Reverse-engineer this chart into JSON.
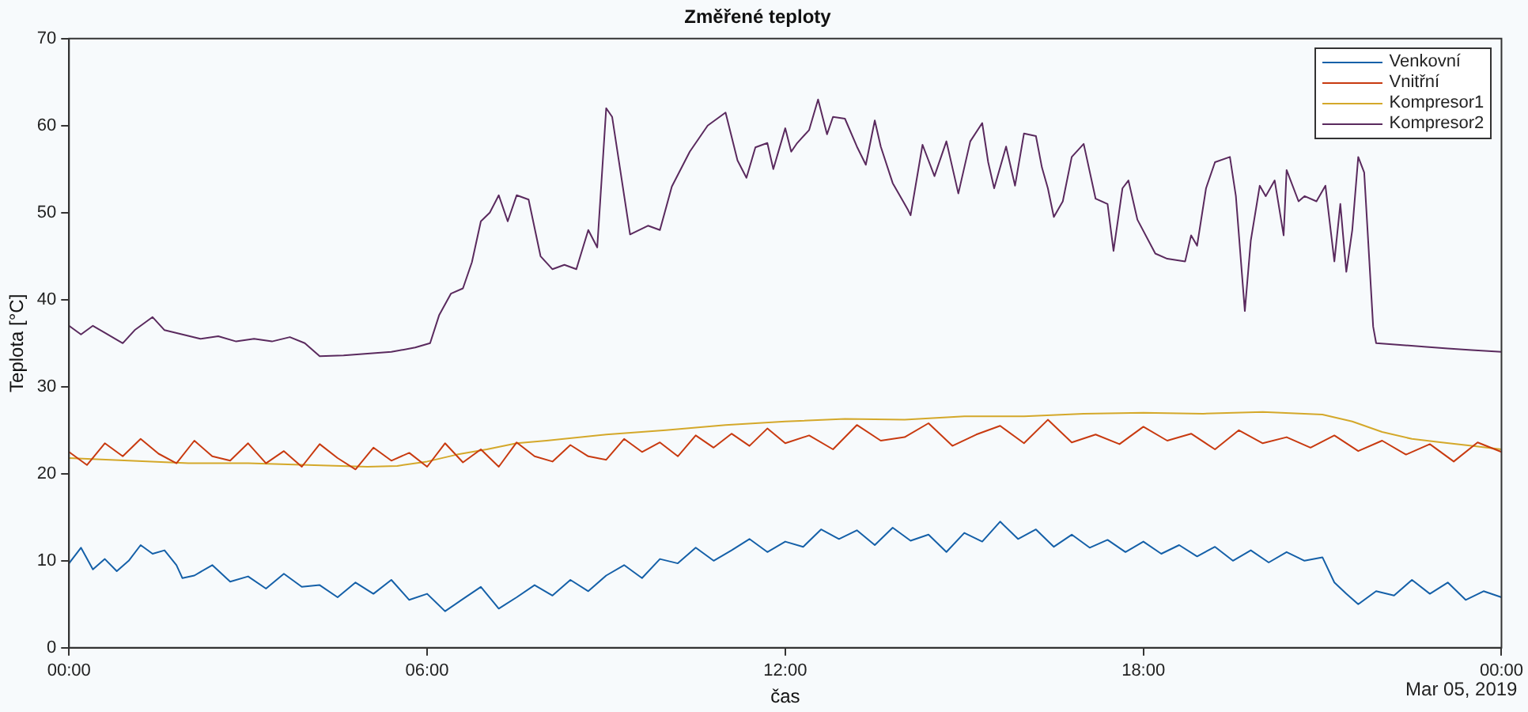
{
  "chart_data": {
    "type": "line",
    "title": "Změřené teploty",
    "xlabel": "čas",
    "ylabel": "Teplota [°C]",
    "annotations": [
      "Mar 05, 2019"
    ],
    "xlim": [
      0,
      24
    ],
    "xticks": [
      {
        "value": 0,
        "label": "00:00"
      },
      {
        "value": 6,
        "label": "06:00"
      },
      {
        "value": 12,
        "label": "12:00"
      },
      {
        "value": 18,
        "label": "18:00"
      },
      {
        "value": 24,
        "label": "00:00"
      }
    ],
    "ylim": [
      0,
      70
    ],
    "yticks": [
      0,
      10,
      20,
      30,
      40,
      50,
      60,
      70
    ],
    "grid": false,
    "legend": "top right",
    "marker": "none",
    "line_style": "solid",
    "series": [
      {
        "name": "Venkovní",
        "color": "#1560a8",
        "x": [
          0,
          0.2,
          0.4,
          0.6,
          0.8,
          1.0,
          1.2,
          1.4,
          1.6,
          1.8,
          1.9,
          2.1,
          2.4,
          2.7,
          3.0,
          3.3,
          3.6,
          3.9,
          4.2,
          4.5,
          4.8,
          5.1,
          5.4,
          5.7,
          6.0,
          6.3,
          6.6,
          6.9,
          7.2,
          7.5,
          7.8,
          8.1,
          8.4,
          8.7,
          9.0,
          9.3,
          9.6,
          9.9,
          10.2,
          10.5,
          10.8,
          11.1,
          11.4,
          11.7,
          12.0,
          12.3,
          12.6,
          12.9,
          13.2,
          13.5,
          13.8,
          14.1,
          14.4,
          14.7,
          15.0,
          15.3,
          15.6,
          15.9,
          16.2,
          16.5,
          16.8,
          17.1,
          17.4,
          17.7,
          18.0,
          18.3,
          18.6,
          18.9,
          19.2,
          19.5,
          19.8,
          20.1,
          20.4,
          20.7,
          21.0,
          21.2,
          21.4,
          21.6,
          21.9,
          22.2,
          22.5,
          22.8,
          23.1,
          23.4,
          23.7,
          24.0
        ],
        "values": [
          9.7,
          11.5,
          9,
          10.2,
          8.8,
          10,
          11.8,
          10.8,
          11.2,
          9.5,
          8,
          8.3,
          9.5,
          7.6,
          8.2,
          6.8,
          8.5,
          7,
          7.2,
          5.8,
          7.5,
          6.2,
          7.8,
          5.5,
          6.2,
          4.2,
          5.6,
          7,
          4.5,
          5.8,
          7.2,
          6,
          7.8,
          6.5,
          8.3,
          9.5,
          8,
          10.2,
          9.7,
          11.5,
          10,
          11.2,
          12.5,
          11,
          12.2,
          11.6,
          13.6,
          12.5,
          13.5,
          11.8,
          13.8,
          12.3,
          13,
          11,
          13.2,
          12.2,
          14.5,
          12.5,
          13.6,
          11.6,
          13,
          11.5,
          12.4,
          11,
          12.2,
          10.8,
          11.8,
          10.5,
          11.6,
          10,
          11.2,
          9.8,
          11,
          10,
          10.4,
          7.5,
          6.2,
          5,
          6.5,
          6,
          7.8,
          6.2,
          7.5,
          5.5,
          6.5,
          5.8
        ]
      },
      {
        "name": "Vnitřní",
        "color": "#c83a10",
        "x": [
          0,
          0.3,
          0.6,
          0.9,
          1.2,
          1.5,
          1.8,
          2.1,
          2.4,
          2.7,
          3.0,
          3.3,
          3.6,
          3.9,
          4.2,
          4.5,
          4.8,
          5.1,
          5.4,
          5.7,
          6.0,
          6.3,
          6.6,
          6.9,
          7.2,
          7.5,
          7.8,
          8.1,
          8.4,
          8.7,
          9.0,
          9.3,
          9.6,
          9.9,
          10.2,
          10.5,
          10.8,
          11.1,
          11.4,
          11.7,
          12.0,
          12.4,
          12.8,
          13.2,
          13.6,
          14.0,
          14.4,
          14.8,
          15.2,
          15.6,
          16.0,
          16.4,
          16.8,
          17.2,
          17.6,
          18.0,
          18.4,
          18.8,
          19.2,
          19.6,
          20.0,
          20.4,
          20.8,
          21.2,
          21.6,
          22.0,
          22.4,
          22.8,
          23.2,
          23.6,
          24.0
        ],
        "values": [
          22.5,
          21,
          23.5,
          22,
          24,
          22.3,
          21.2,
          23.8,
          22,
          21.5,
          23.5,
          21.2,
          22.6,
          20.8,
          23.4,
          21.8,
          20.5,
          23,
          21.5,
          22.4,
          20.8,
          23.5,
          21.3,
          22.8,
          20.8,
          23.6,
          22,
          21.4,
          23.3,
          22,
          21.6,
          24,
          22.5,
          23.6,
          22,
          24.4,
          23,
          24.6,
          23.2,
          25.2,
          23.5,
          24.4,
          22.8,
          25.6,
          23.8,
          24.2,
          25.8,
          23.2,
          24.5,
          25.5,
          23.5,
          26.2,
          23.6,
          24.5,
          23.4,
          25.4,
          23.8,
          24.6,
          22.8,
          25,
          23.5,
          24.2,
          23,
          24.4,
          22.6,
          23.8,
          22.2,
          23.4,
          21.4,
          23.6,
          22.5
        ]
      },
      {
        "name": "Kompresor1",
        "color": "#d4a82a",
        "x": [
          0,
          1,
          2,
          3,
          4,
          5,
          5.5,
          6,
          6.5,
          7,
          7.5,
          8,
          9,
          10,
          11,
          12,
          13,
          14,
          15,
          16,
          17,
          18,
          19,
          20,
          21,
          21.5,
          22,
          22.5,
          23,
          23.5,
          24
        ],
        "values": [
          21.8,
          21.5,
          21.2,
          21.2,
          21,
          20.8,
          20.9,
          21.4,
          22.2,
          22.8,
          23.5,
          23.8,
          24.5,
          25,
          25.6,
          26,
          26.3,
          26.2,
          26.6,
          26.6,
          26.9,
          27,
          26.9,
          27.1,
          26.8,
          26,
          24.8,
          24,
          23.6,
          23.2,
          22.8
        ]
      },
      {
        "name": "Kompresor2",
        "color": "#5a2a5e",
        "x": [
          0,
          0.2,
          0.4,
          0.6,
          0.9,
          1.1,
          1.4,
          1.6,
          1.9,
          2.2,
          2.5,
          2.8,
          3.1,
          3.4,
          3.7,
          3.95,
          4.2,
          4.6,
          5.0,
          5.4,
          5.8,
          6.05,
          6.2,
          6.4,
          6.6,
          6.75,
          6.9,
          7.05,
          7.2,
          7.35,
          7.5,
          7.7,
          7.9,
          8.1,
          8.3,
          8.5,
          8.7,
          8.85,
          9.0,
          9.1,
          9.4,
          9.7,
          9.9,
          10.1,
          10.4,
          10.7,
          11.0,
          11.2,
          11.35,
          11.5,
          11.7,
          11.8,
          12.0,
          12.1,
          12.2,
          12.4,
          12.55,
          12.7,
          12.8,
          13.0,
          13.2,
          13.35,
          13.5,
          13.6,
          13.8,
          14.05,
          14.1,
          14.3,
          14.5,
          14.7,
          14.9,
          15.1,
          15.3,
          15.4,
          15.5,
          15.7,
          15.85,
          16.0,
          16.2,
          16.3,
          16.4,
          16.5,
          16.65,
          16.8,
          17.0,
          17.2,
          17.4,
          17.5,
          17.65,
          17.75,
          17.9,
          18.2,
          18.4,
          18.7,
          18.8,
          18.9,
          19.05,
          19.2,
          19.45,
          19.55,
          19.7,
          19.8,
          19.95,
          20.05,
          20.2,
          20.35,
          20.4,
          20.6,
          20.7,
          20.9,
          21.05,
          21.2,
          21.3,
          21.4,
          21.5,
          21.6,
          21.7,
          21.85,
          21.9,
          22.3,
          22.7,
          23.1,
          23.5,
          24.0
        ],
        "values": [
          37,
          36,
          37,
          36.2,
          35,
          36.5,
          38,
          36.5,
          36,
          35.5,
          35.8,
          35.2,
          35.5,
          35.2,
          35.7,
          35,
          33.5,
          33.6,
          33.8,
          34,
          34.5,
          35,
          38.2,
          40.7,
          41.3,
          44.3,
          49,
          50,
          52,
          49,
          52,
          51.5,
          45,
          43.5,
          44,
          43.5,
          48,
          46,
          62,
          61,
          47.5,
          48.5,
          48,
          53,
          57,
          60,
          61.5,
          56,
          54,
          57.5,
          58,
          55,
          59.7,
          57,
          58,
          59.5,
          63,
          59,
          61,
          60.8,
          57.6,
          55.5,
          60.6,
          57.6,
          53.4,
          50.4,
          49.7,
          57.8,
          54.2,
          58.2,
          52.2,
          58.2,
          60.3,
          55.8,
          52.8,
          57.6,
          53.1,
          59.1,
          58.8,
          55.2,
          52.8,
          49.5,
          51.3,
          56.4,
          57.9,
          51.6,
          51,
          45.6,
          52.8,
          53.7,
          49.2,
          45.3,
          44.7,
          44.4,
          47.4,
          46.2,
          52.8,
          55.8,
          56.4,
          51.9,
          38.7,
          46.8,
          53.1,
          51.9,
          53.7,
          47.4,
          54.9,
          51.3,
          51.9,
          51.3,
          53.1,
          44.4,
          51,
          43.2,
          48,
          56.4,
          54.6,
          36.9,
          35,
          34.8,
          34.6,
          34.4,
          34.2,
          34
        ]
      }
    ]
  }
}
